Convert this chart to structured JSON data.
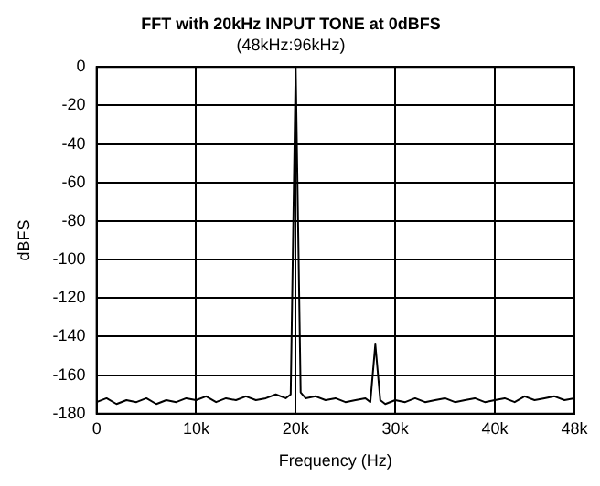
{
  "chart_data": {
    "type": "line",
    "title": "FFT with 20kHz INPUT TONE at 0dBFS",
    "subtitle": "(48kHz:96kHz)",
    "xlabel": "Frequency (Hz)",
    "ylabel": "dBFS",
    "x": [
      0,
      1000,
      2000,
      3000,
      4000,
      5000,
      6000,
      7000,
      8000,
      9000,
      10000,
      11000,
      12000,
      13000,
      14000,
      15000,
      16000,
      17000,
      18000,
      19000,
      19500,
      20000,
      20500,
      21000,
      22000,
      23000,
      24000,
      25000,
      26000,
      27000,
      27500,
      28000,
      28500,
      29000,
      30000,
      31000,
      32000,
      33000,
      34000,
      35000,
      36000,
      37000,
      38000,
      39000,
      40000,
      41000,
      42000,
      43000,
      44000,
      45000,
      46000,
      47000,
      48000
    ],
    "series": [
      {
        "color": "#000000",
        "values": [
          -174,
          -172,
          -175,
          -173,
          -174,
          -172,
          -175,
          -173,
          -174,
          -172,
          -173,
          -171,
          -174,
          -172,
          -173,
          -171,
          -173,
          -172,
          -170,
          -172,
          -170,
          0,
          -169,
          -172,
          -171,
          -173,
          -172,
          -174,
          -173,
          -172,
          -174,
          -144,
          -173,
          -175,
          -173,
          -174,
          -172,
          -174,
          -173,
          -172,
          -174,
          -173,
          -172,
          -174,
          -173,
          -172,
          -174,
          -171,
          -173,
          -172,
          -171,
          -173,
          -172
        ]
      }
    ],
    "xlim": [
      0,
      48000
    ],
    "xticks": [
      0,
      {
        "value": 10000,
        "label": "10k"
      },
      {
        "value": 20000,
        "label": "20k"
      },
      {
        "value": 30000,
        "label": "30k"
      },
      {
        "value": 40000,
        "label": "40k"
      },
      {
        "value": 48000,
        "label": "48k"
      }
    ],
    "ylim": [
      -180,
      0
    ],
    "yticks": [
      -180,
      -160,
      -140,
      -120,
      -100,
      -80,
      -60,
      -40,
      -20,
      0
    ],
    "grid": true,
    "legend": false,
    "marker": "none",
    "line_style": "solid"
  }
}
